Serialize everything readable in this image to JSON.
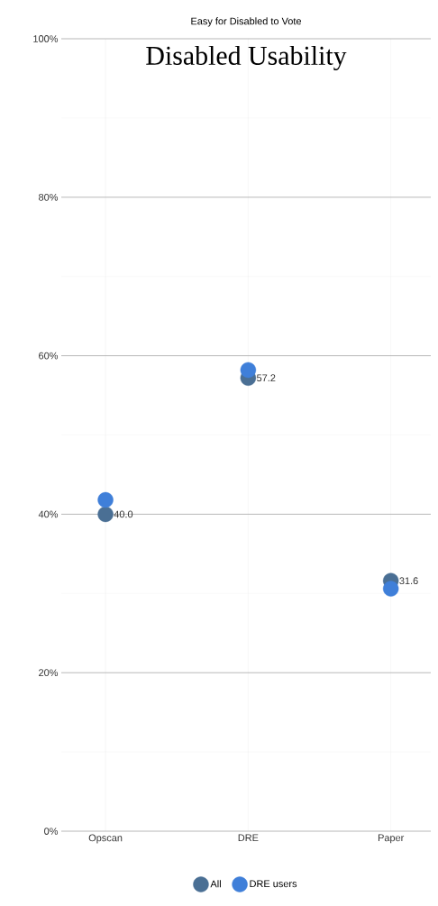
{
  "chart_data": {
    "type": "scatter",
    "title": "Easy for Disabled to Vote",
    "subtitle": "Disabled Usability",
    "categories": [
      "Opscan",
      "DRE",
      "Paper"
    ],
    "series": [
      {
        "name": "All",
        "color": "#4a6f94",
        "values": [
          40.0,
          57.2,
          31.6
        ],
        "value_labels": [
          "40.0",
          "57.2",
          "31.6"
        ]
      },
      {
        "name": "DRE users",
        "color": "#3f7fd9",
        "values": [
          41.8,
          58.2,
          30.6
        ]
      }
    ],
    "ylim": [
      0,
      100
    ],
    "yticks": [
      {
        "value": 0,
        "label": "0%"
      },
      {
        "value": 20,
        "label": "20%"
      },
      {
        "value": 40,
        "label": "40%"
      },
      {
        "value": 60,
        "label": "60%"
      },
      {
        "value": 80,
        "label": "80%"
      },
      {
        "value": 100,
        "label": "100%"
      }
    ],
    "grid": true,
    "legend": "bottom",
    "marker": "circle"
  }
}
